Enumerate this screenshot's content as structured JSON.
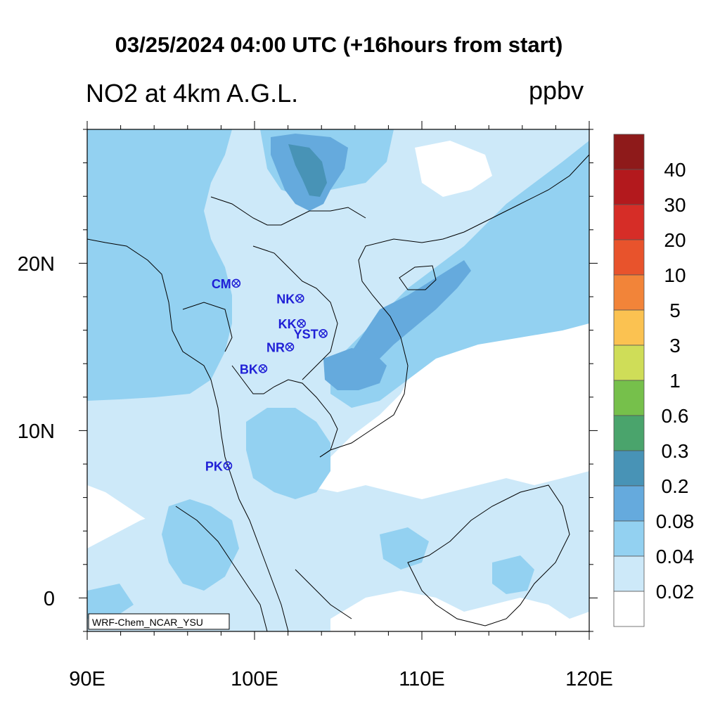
{
  "title": "03/25/2024 04:00 UTC (+16hours from start)",
  "left_title": "NO2 at 4km A.G.L.",
  "units": "ppbv",
  "watermark": "WRF-Chem_NCAR_YSU",
  "axes": {
    "x_ticks": [
      "90E",
      "100E",
      "110E",
      "120E"
    ],
    "y_ticks": [
      "20N",
      "10N",
      "0"
    ]
  },
  "colorbar": {
    "labels": [
      "40",
      "30",
      "20",
      "10",
      "5",
      "3",
      "1",
      "0.6",
      "0.3",
      "0.2",
      "0.08",
      "0.04",
      "0.02"
    ],
    "colors": [
      "#8e1a1a",
      "#b3191d",
      "#d62d27",
      "#e8532c",
      "#f28439",
      "#fbc251",
      "#cfdd58",
      "#76c04b",
      "#4aa46c",
      "#4893b6",
      "#65aadd",
      "#93d1f1",
      "#cde9f9",
      "#ffffff"
    ]
  },
  "stations": [
    {
      "code": "CM",
      "lon": 98.9,
      "lat": 18.8
    },
    {
      "code": "NK",
      "lon": 102.7,
      "lat": 17.9
    },
    {
      "code": "KK",
      "lon": 102.8,
      "lat": 16.4
    },
    {
      "code": "YST",
      "lon": 104.1,
      "lat": 15.8
    },
    {
      "code": "NR",
      "lon": 102.1,
      "lat": 15.0
    },
    {
      "code": "BK",
      "lon": 100.5,
      "lat": 13.7
    },
    {
      "code": "PK",
      "lon": 98.4,
      "lat": 7.9
    }
  ]
}
